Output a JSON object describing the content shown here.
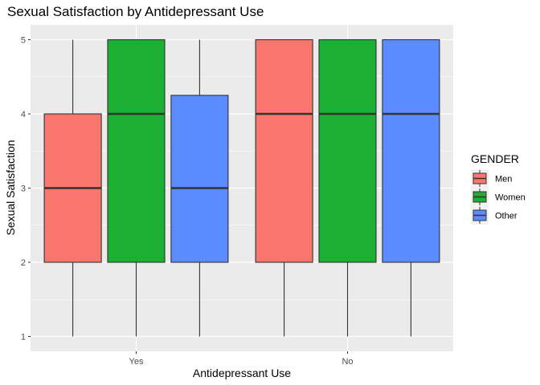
{
  "chart_data": {
    "type": "boxplot",
    "title": "Sexual Satisfaction by Antidepressant Use",
    "xlabel": "Antidepressant Use",
    "ylabel": "Sexual Satisfaction",
    "categories": [
      "Yes",
      "No"
    ],
    "ylim": [
      0.8,
      5.2
    ],
    "yticks": [
      1,
      2,
      3,
      4,
      5
    ],
    "grid": true,
    "legend": {
      "title": "GENDER",
      "position": "right"
    },
    "series": [
      {
        "name": "Men",
        "color": "#F8766D",
        "boxes": [
          {
            "min": 1,
            "q1": 2,
            "median": 3,
            "q3": 4,
            "max": 5
          },
          {
            "min": 1,
            "q1": 2,
            "median": 4,
            "q3": 5,
            "max": 5
          }
        ]
      },
      {
        "name": "Women",
        "color": "#1BB031",
        "boxes": [
          {
            "min": 1,
            "q1": 2,
            "median": 4,
            "q3": 5,
            "max": 5
          },
          {
            "min": 1,
            "q1": 2,
            "median": 4,
            "q3": 5,
            "max": 5
          }
        ]
      },
      {
        "name": "Other",
        "color": "#5A8CFF",
        "boxes": [
          {
            "min": 1,
            "q1": 2,
            "median": 3,
            "q3": 4.25,
            "max": 5
          },
          {
            "min": 1,
            "q1": 2,
            "median": 4,
            "q3": 5,
            "max": 5
          }
        ]
      }
    ]
  }
}
